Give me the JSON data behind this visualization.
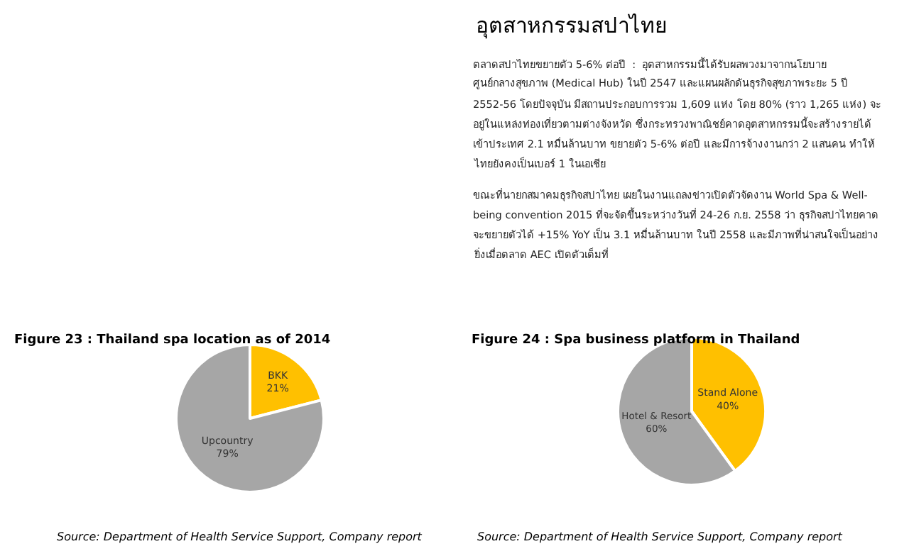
{
  "chart_data": [
    {
      "type": "other",
      "title": "อุตสาหกรรมสปาไทย",
      "annotations": [
        "ตลาดสปาไทยขยายตัว 5-6% ต่อปี  :  อุตสาหกรรมนี้ได้รับผลพวงมาจากนโยบาย",
        "ศูนย์กลางสุขภาพ (Medical Hub) ในปี 2547 และแผนผลักดันธุรกิจสุขภาพระยะ 5 ปี",
        "2552-56 โดยปัจจุบัน มีสถานประกอบการรวม 1,609 แห่ง โดย 80% (ราว 1,265 แห่ง) จะ",
        "อยู่ในแหล่งท่องเที่ยวตามต่างจังหวัด ซึ่งกระทรวงพาณิชย์คาดอุตสาหกรรมนี้จะสร้างรายได้",
        "เข้าประเทศ 2.1 หมื่นล้านบาท ขยายตัว 5-6% ต่อปี และมีการจ้างงานกว่า 2 แสนคน ทำให้",
        "ไทยยังคงเป็นเบอร์ 1 ในเอเชีย",
        "ขณะที่นายกสมาคมธุรกิจสปาไทย เผยในงานแถลงข่าวเปิดตัวจัดงาน World Spa & Well-",
        "being convention 2015 ที่จะจัดขึ้นระหว่างวันที่ 24-26 ก.ย. 2558 ว่า ธุรกิจสปาไทยคาด",
        "จะขยายตัวได้ +15% YoY เป็น 3.1 หมื่นล้านบาท ในปี 2558 และมีภาพที่น่าสนใจเป็นอย่าง",
        "ยิ่งเมื่อตลาด AEC เปิดตัวเต็มที่"
      ]
    },
    {
      "type": "pie",
      "title": "Figure 23 : Thailand spa location as of 2014",
      "categories": [
        "BKK",
        "Upcountry"
      ],
      "values": [
        21,
        79
      ],
      "value_labels": [
        "21%",
        "79%"
      ],
      "colors": [
        "#ffc000",
        "#a6a6a6"
      ],
      "annotations": [
        "Source: Department of Health Service Support, Company report"
      ]
    },
    {
      "type": "pie",
      "title": "Figure 24 : Spa business platform in Thailand",
      "categories": [
        "Stand Alone",
        "Hotel & Resort"
      ],
      "values": [
        40,
        60
      ],
      "value_labels": [
        "40%",
        "60%"
      ],
      "colors": [
        "#ffc000",
        "#a6a6a6"
      ],
      "annotations": [
        "Source: Department of Health Service Support, Company report"
      ]
    }
  ]
}
